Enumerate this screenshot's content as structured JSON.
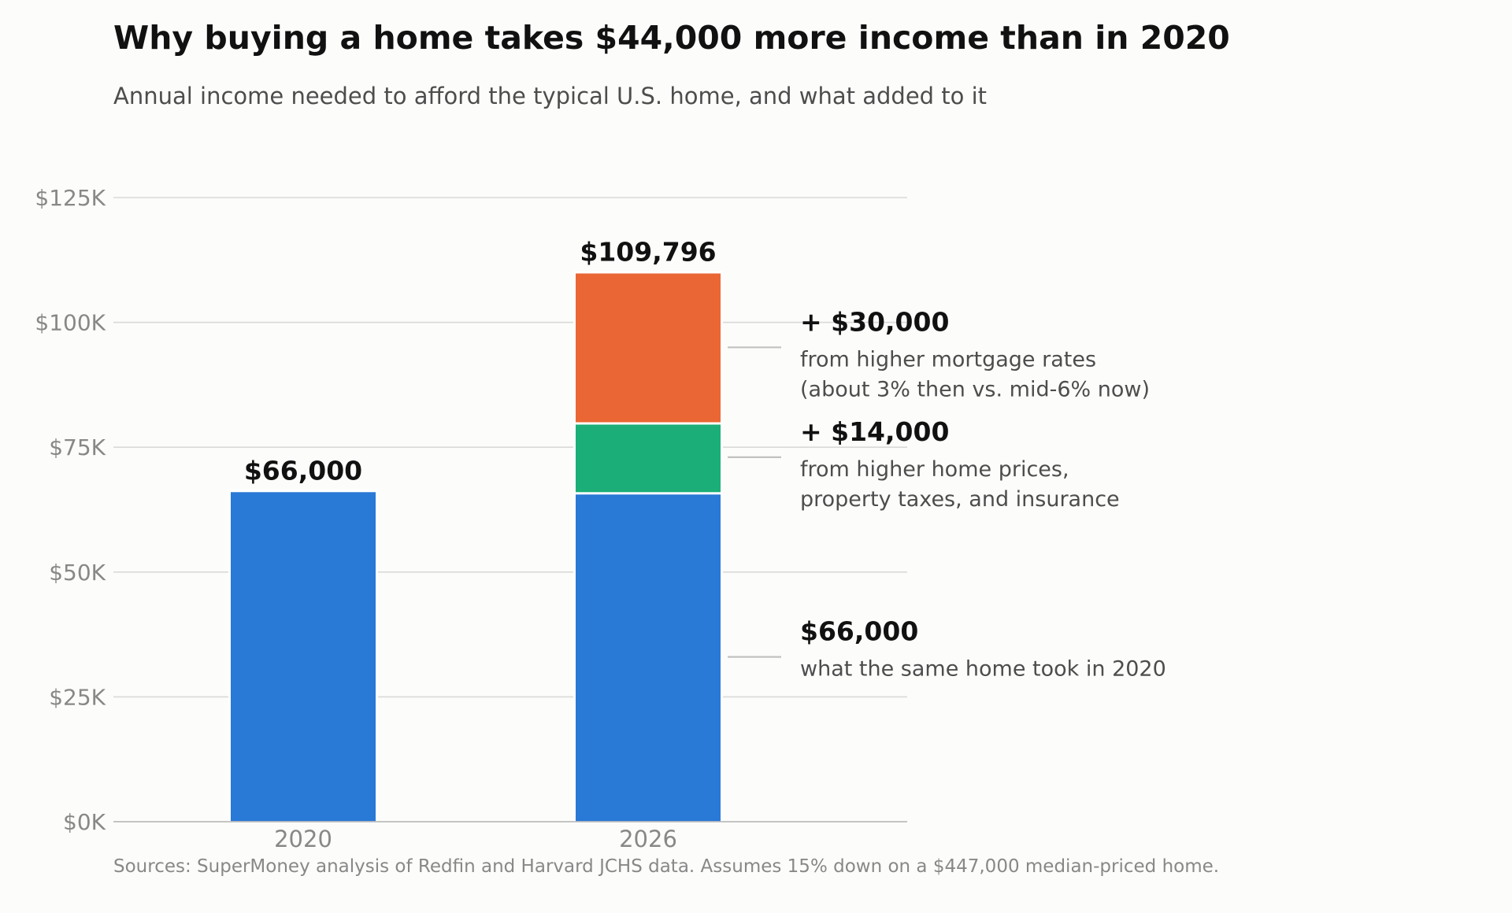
{
  "title": "Why buying a home takes $44,000 more income than in 2020",
  "subtitle": "Annual income needed to afford the typical U.S. home, and what added to it",
  "source": "Sources: SuperMoney analysis of Redfin and Harvard JCHS data. Assumes 15% down on a $447,000 median-priced home.",
  "chart_data": {
    "type": "bar",
    "stacked": true,
    "categories": [
      "2020",
      "2026"
    ],
    "ylim": [
      0,
      125000
    ],
    "yticks": [
      0,
      25000,
      50000,
      75000,
      100000,
      125000
    ],
    "ytick_labels": [
      "$0K",
      "$25K",
      "$50K",
      "$75K",
      "$100K",
      "$125K"
    ],
    "grid": true,
    "series": [
      {
        "values": [
          66000,
          66000
        ],
        "color": "#2979d6"
      },
      {
        "values": [
          0,
          14000
        ],
        "color": "#1bae78"
      },
      {
        "values": [
          0,
          29796
        ],
        "color": "#ea6634"
      }
    ],
    "total_labels": [
      "$66,000",
      "$109,796"
    ],
    "annotations": [
      {
        "value": 95000,
        "head": "+ $30,000",
        "lines": [
          "from higher mortgage rates",
          "(about 3% then vs. mid-6% now)"
        ]
      },
      {
        "value": 73000,
        "head": "+ $14,000",
        "lines": [
          "from higher home prices,",
          "property taxes, and insurance"
        ]
      },
      {
        "value": 33000,
        "head": "$66,000",
        "lines": [
          "what the same home took in 2020"
        ]
      }
    ]
  }
}
